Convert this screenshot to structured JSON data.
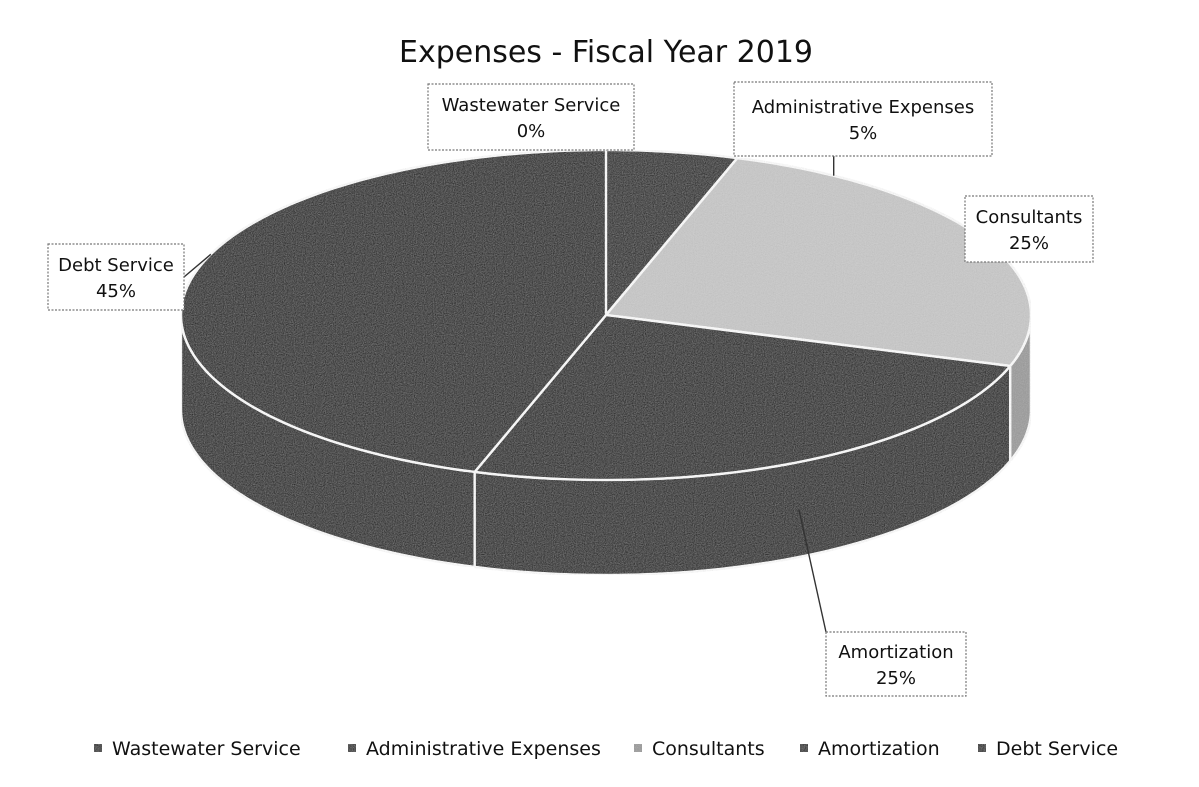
{
  "chart_data": {
    "type": "pie",
    "title": "Expenses - Fiscal Year 2019",
    "categories": [
      "Wastewater Service",
      "Administrative Expenses",
      "Consultants",
      "Amortization",
      "Debt Service"
    ],
    "values": [
      0,
      5,
      25,
      25,
      45
    ],
    "data_labels": [
      "0%",
      "5%",
      "25%",
      "25%",
      "45%"
    ],
    "colors": [
      "#222222",
      "#141414",
      "#c9c9c9",
      "#111111",
      "#0d0d0d"
    ],
    "legend": {
      "position": "bottom",
      "entries": [
        "Wastewater Service",
        "Administrative Expenses",
        "Consultants",
        "Amortization",
        "Debt Service"
      ]
    },
    "three_d": true
  }
}
